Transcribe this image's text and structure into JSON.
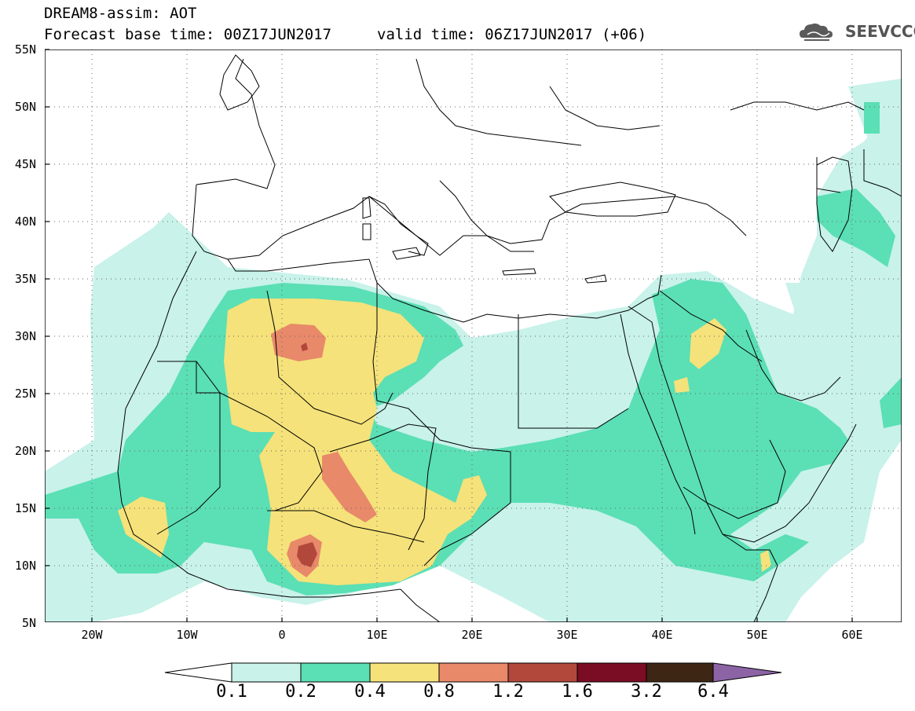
{
  "header": {
    "title": "DREAM8-assim: AOT",
    "base_time": "Forecast base time: 00Z17JUN2017",
    "valid_time": "valid time: 06Z17JUN2017 (+06)",
    "logo_text": "SEEVCCC"
  },
  "map": {
    "lon_range": [
      -25,
      65
    ],
    "lat_range": [
      5,
      55
    ],
    "lat_labels": [
      "55N",
      "50N",
      "45N",
      "40N",
      "35N",
      "30N",
      "25N",
      "20N",
      "15N",
      "10N",
      "5N"
    ],
    "lon_labels": [
      "20W",
      "10W",
      "0",
      "10E",
      "20E",
      "30E",
      "40E",
      "50E",
      "60E"
    ],
    "grid": "dotted",
    "land": "white",
    "borders": "black"
  },
  "colorbar": {
    "labels": [
      "0.1",
      "0.2",
      "0.4",
      "0.8",
      "1.2",
      "1.6",
      "3.2",
      "6.4"
    ],
    "colors": [
      "#c8f2ea",
      "#5bdfb4",
      "#f5e27a",
      "#e8896a",
      "#b2473c",
      "#7a0c24",
      "#3e2614",
      "#8c64a6"
    ],
    "extend": "both"
  }
}
